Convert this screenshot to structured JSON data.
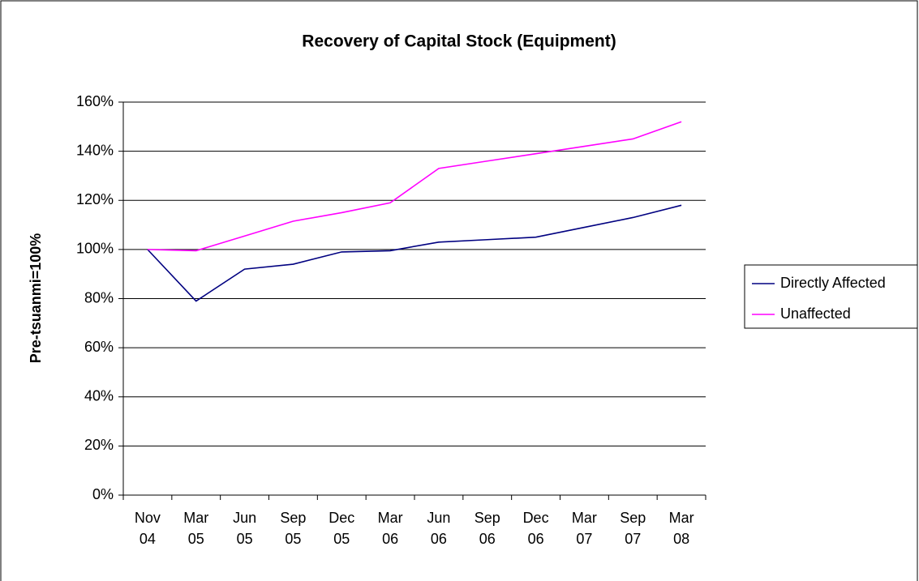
{
  "chart_data": {
    "type": "line",
    "title": "Recovery of Capital Stock (Equipment)",
    "y_label": "Pre-tsuanmi=100%",
    "categories": [
      "Nov 04",
      "Mar 05",
      "Jun 05",
      "Sep 05",
      "Dec 05",
      "Mar 06",
      "Jun 06",
      "Sep 06",
      "Dec 06",
      "Mar 07",
      "Sep 07",
      "Mar 08"
    ],
    "series": [
      {
        "name": "Directly Affected",
        "color": "#000080",
        "values": [
          100,
          79,
          92,
          94,
          99,
          99.5,
          103,
          104,
          105,
          109,
          113,
          118
        ]
      },
      {
        "name": "Unaffected",
        "color": "#ff00ff",
        "values": [
          100,
          99.5,
          105.5,
          111.5,
          115,
          119,
          133,
          136,
          139,
          142,
          145,
          152
        ]
      }
    ],
    "ylim": [
      0,
      160
    ],
    "yticks": [
      {
        "value": 0,
        "label": "0%"
      },
      {
        "value": 20,
        "label": "20%"
      },
      {
        "value": 40,
        "label": "40%"
      },
      {
        "value": 60,
        "label": "60%"
      },
      {
        "value": 80,
        "label": "80%"
      },
      {
        "value": 100,
        "label": "100%"
      },
      {
        "value": 120,
        "label": "120%"
      },
      {
        "value": 140,
        "label": "140%"
      },
      {
        "value": 160,
        "label": "160%"
      }
    ],
    "grid": true,
    "legend": "right"
  }
}
